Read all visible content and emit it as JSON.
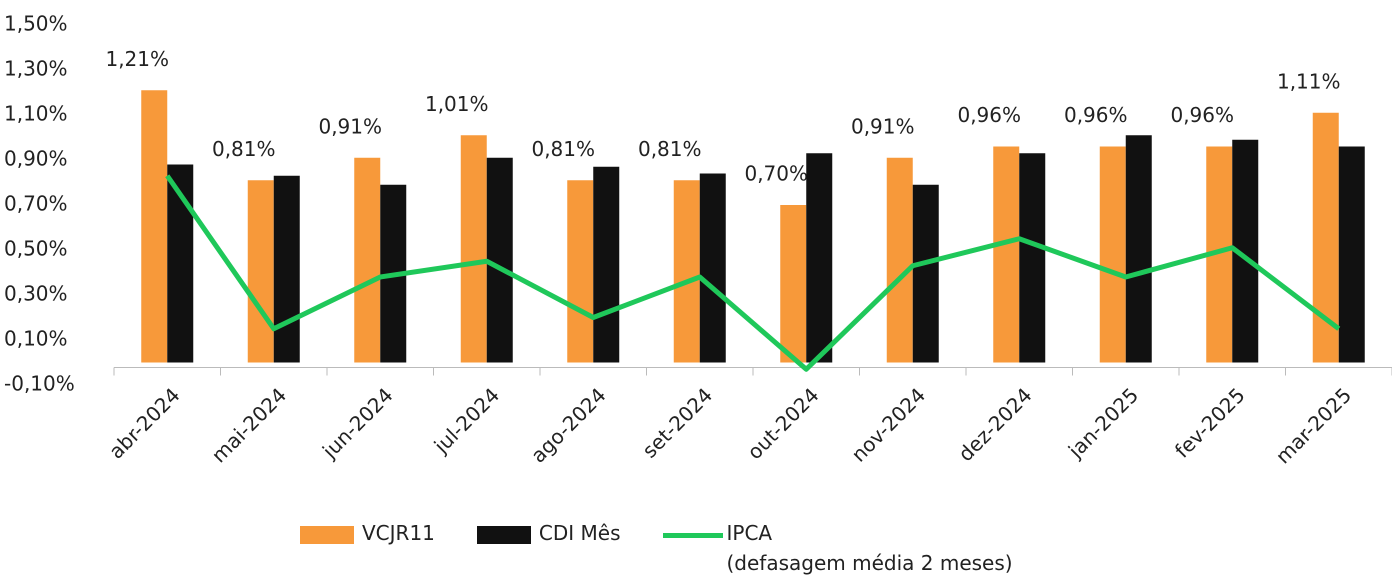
{
  "chart_data": {
    "type": "bar-line",
    "categories": [
      "abr-2024",
      "mai-2024",
      "jun-2024",
      "jul-2024",
      "ago-2024",
      "set-2024",
      "out-2024",
      "nov-2024",
      "dez-2024",
      "jan-2025",
      "fev-2025",
      "mar-2025"
    ],
    "series": [
      {
        "name": "VCJR11",
        "color": "#f7993a",
        "type": "bar",
        "values": [
          1.21,
          0.81,
          0.91,
          1.01,
          0.81,
          0.81,
          0.7,
          0.91,
          0.96,
          0.96,
          0.96,
          1.11
        ],
        "value_labels": [
          "1,21%",
          "0,81%",
          "0,91%",
          "1,01%",
          "0,81%",
          "0,81%",
          "0,70%",
          "0,91%",
          "0,96%",
          "0,96%",
          "0,96%",
          "1,11%"
        ]
      },
      {
        "name": "CDI Mês",
        "color": "#111111",
        "type": "bar",
        "values": [
          0.88,
          0.83,
          0.79,
          0.91,
          0.87,
          0.84,
          0.93,
          0.79,
          0.93,
          1.01,
          0.99,
          0.96
        ]
      },
      {
        "name": "IPCA\n(defasagem média 2 meses)",
        "color": "#1fc85a",
        "type": "line",
        "values": [
          0.83,
          0.15,
          0.38,
          0.45,
          0.2,
          0.38,
          -0.03,
          0.43,
          0.55,
          0.38,
          0.51,
          0.15
        ]
      }
    ],
    "ylim": [
      -0.15,
      1.55
    ],
    "yticks": [
      {
        "value": -0.1,
        "label": "-0,10%"
      },
      {
        "value": 0.1,
        "label": "0,10%"
      },
      {
        "value": 0.3,
        "label": "0,30%"
      },
      {
        "value": 0.5,
        "label": "0,50%"
      },
      {
        "value": 0.7,
        "label": "0,70%"
      },
      {
        "value": 0.9,
        "label": "0,90%"
      },
      {
        "value": 1.1,
        "label": "1,10%"
      },
      {
        "value": 1.3,
        "label": "1,30%"
      },
      {
        "value": 1.5,
        "label": "1,50%"
      }
    ],
    "grid": false
  }
}
